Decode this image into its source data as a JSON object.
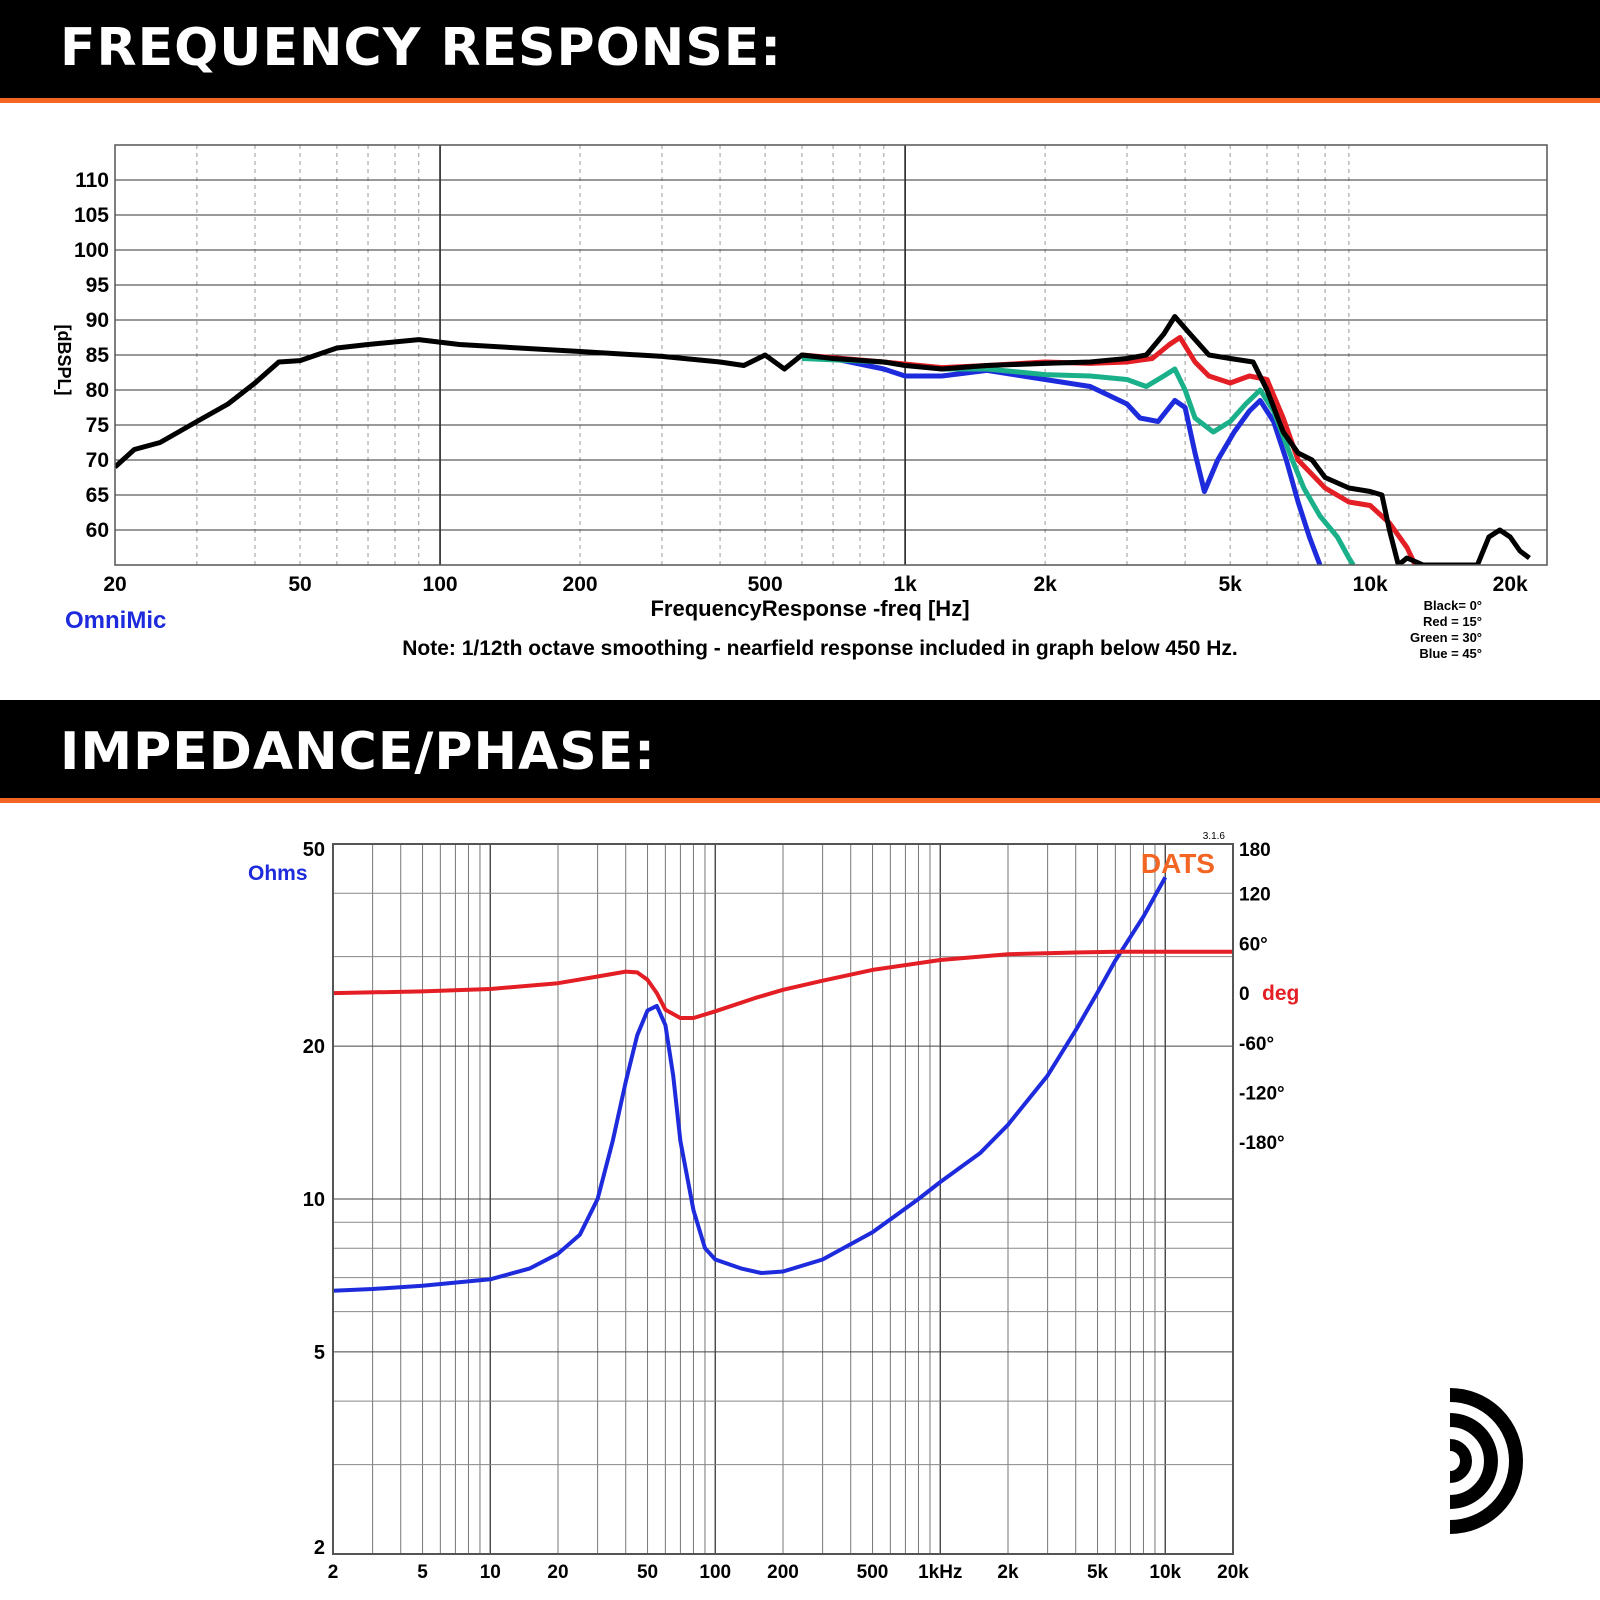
{
  "banners": {
    "frequency": "FREQUENCY RESPONSE:",
    "impedance": "IMPEDANCE/PHASE:"
  },
  "colors": {
    "accent": "#f26522",
    "black": "#000000",
    "red": "#e31e24",
    "green": "#19b08a",
    "blue": "#1d2bdc"
  },
  "chart_data": [
    {
      "type": "line",
      "title": "",
      "xlabel": "FrequencyResponse -freq [Hz]",
      "ylabel": "[dBSPL]",
      "x_scale": "log",
      "xlim": [
        20,
        24000
      ],
      "ylim": [
        55,
        115
      ],
      "grid": true,
      "x_ticks": [
        20,
        50,
        100,
        200,
        500,
        1000,
        2000,
        5000,
        10000,
        20000
      ],
      "x_tick_labels": [
        "20",
        "50",
        "100",
        "200",
        "500",
        "1k",
        "2k",
        "5k",
        "10k",
        "20k"
      ],
      "y_ticks": [
        60,
        65,
        70,
        75,
        80,
        85,
        90,
        95,
        100,
        105,
        110
      ],
      "brand_label": "OmniMic",
      "note": "Note: 1/12th octave smoothing - nearfield response included in graph below 450 Hz.",
      "legend_placement": "bottom-right",
      "legend": [
        "Black= 0°",
        "Red = 15°",
        "Green = 30°",
        "Blue = 45°"
      ],
      "series": [
        {
          "name": "Black= 0°",
          "color": "#000000",
          "points": [
            [
              20,
              69
            ],
            [
              22,
              71.5
            ],
            [
              25,
              72.5
            ],
            [
              30,
              75.5
            ],
            [
              35,
              78
            ],
            [
              40,
              81
            ],
            [
              45,
              84
            ],
            [
              50,
              84.2
            ],
            [
              60,
              86
            ],
            [
              70,
              86.5
            ],
            [
              90,
              87.2
            ],
            [
              110,
              86.5
            ],
            [
              200,
              85.5
            ],
            [
              300,
              84.8
            ],
            [
              400,
              84
            ],
            [
              450,
              83.5
            ],
            [
              500,
              85
            ],
            [
              550,
              83
            ],
            [
              600,
              85
            ],
            [
              700,
              84.5
            ],
            [
              900,
              84
            ],
            [
              1000,
              83.5
            ],
            [
              1200,
              83
            ],
            [
              1500,
              83.5
            ],
            [
              2000,
              83.8
            ],
            [
              2500,
              84
            ],
            [
              3000,
              84.5
            ],
            [
              3300,
              85
            ],
            [
              3600,
              88
            ],
            [
              3800,
              90.5
            ],
            [
              4100,
              88
            ],
            [
              4500,
              85
            ],
            [
              5000,
              84.5
            ],
            [
              5600,
              84
            ],
            [
              6000,
              80
            ],
            [
              6500,
              74
            ],
            [
              7000,
              71
            ],
            [
              7500,
              70
            ],
            [
              8000,
              67.5
            ],
            [
              9000,
              66
            ],
            [
              10000,
              65.5
            ],
            [
              10600,
              65
            ],
            [
              11000,
              60
            ],
            [
              11500,
              55
            ],
            [
              12000,
              56
            ],
            [
              13000,
              55
            ],
            [
              17000,
              55
            ],
            [
              18000,
              59
            ],
            [
              19000,
              60
            ],
            [
              20000,
              59
            ],
            [
              21000,
              57
            ],
            [
              22000,
              56
            ]
          ]
        },
        {
          "name": "Red = 15°",
          "color": "#e31e24",
          "points": [
            [
              600,
              85
            ],
            [
              900,
              84
            ],
            [
              1200,
              83.2
            ],
            [
              1500,
              83.5
            ],
            [
              2000,
              84
            ],
            [
              2500,
              83.8
            ],
            [
              3000,
              84
            ],
            [
              3400,
              84.5
            ],
            [
              3700,
              86.5
            ],
            [
              3900,
              87.5
            ],
            [
              4200,
              84
            ],
            [
              4500,
              82
            ],
            [
              5000,
              81
            ],
            [
              5500,
              82
            ],
            [
              6000,
              81.5
            ],
            [
              6500,
              76
            ],
            [
              7000,
              70
            ],
            [
              8000,
              66
            ],
            [
              9000,
              64
            ],
            [
              10000,
              63.5
            ],
            [
              11000,
              61
            ],
            [
              12000,
              57.5
            ],
            [
              12500,
              55
            ]
          ]
        },
        {
          "name": "Green = 30°",
          "color": "#19b08a",
          "points": [
            [
              600,
              84.5
            ],
            [
              900,
              84
            ],
            [
              1200,
              83
            ],
            [
              1500,
              83
            ],
            [
              2000,
              82.2
            ],
            [
              2500,
              82
            ],
            [
              3000,
              81.5
            ],
            [
              3300,
              80.5
            ],
            [
              3600,
              82
            ],
            [
              3800,
              83
            ],
            [
              4000,
              80
            ],
            [
              4200,
              76
            ],
            [
              4600,
              74
            ],
            [
              5000,
              75.5
            ],
            [
              5400,
              78
            ],
            [
              5800,
              80
            ],
            [
              6200,
              77
            ],
            [
              6800,
              70
            ],
            [
              7200,
              66
            ],
            [
              7800,
              62
            ],
            [
              8500,
              59
            ],
            [
              9000,
              56
            ],
            [
              9200,
              55
            ]
          ]
        },
        {
          "name": "Blue = 45°",
          "color": "#1d2bdc",
          "points": [
            [
              700,
              84.5
            ],
            [
              900,
              83
            ],
            [
              1000,
              82
            ],
            [
              1200,
              82
            ],
            [
              1500,
              82.8
            ],
            [
              2000,
              81.5
            ],
            [
              2500,
              80.5
            ],
            [
              3000,
              78
            ],
            [
              3200,
              76
            ],
            [
              3500,
              75.5
            ],
            [
              3800,
              78.5
            ],
            [
              4000,
              77.5
            ],
            [
              4200,
              71
            ],
            [
              4400,
              65.5
            ],
            [
              4700,
              70
            ],
            [
              5100,
              74
            ],
            [
              5500,
              77
            ],
            [
              5800,
              78.5
            ],
            [
              6200,
              75.5
            ],
            [
              6600,
              70
            ],
            [
              7000,
              64
            ],
            [
              7400,
              59
            ],
            [
              7800,
              55
            ]
          ]
        }
      ]
    },
    {
      "type": "line",
      "title": "",
      "x_scale": "log",
      "y_scale": "log",
      "xlim": [
        2,
        20000
      ],
      "ylim": [
        2,
        50
      ],
      "y2lim": [
        -180,
        180
      ],
      "grid": true,
      "x_tick_labels": [
        "2",
        "5",
        "10",
        "20",
        "50",
        "100",
        "200",
        "500",
        "1kHz",
        "2k",
        "5k",
        "10k",
        "20k"
      ],
      "x_ticks": [
        2,
        5,
        10,
        20,
        50,
        100,
        200,
        500,
        1000,
        2000,
        5000,
        10000,
        20000
      ],
      "y_ticks": [
        2,
        5,
        10,
        20,
        50
      ],
      "y_tick_labels": [
        "2",
        "5",
        "10",
        "20",
        "50"
      ],
      "ylabel": "Ohms",
      "y2label": "deg",
      "y2_ticks": [
        180,
        120,
        60,
        0,
        -60,
        -120,
        -180
      ],
      "y2_tick_labels": [
        "180",
        "120",
        "60°",
        "0",
        "-60°",
        "-120°",
        "-180°"
      ],
      "brand_label": "DATS",
      "version": "3.1.6",
      "series": [
        {
          "name": "",
          "axis": "left",
          "color": "#1d2bdc",
          "points": [
            [
              2,
              6.6
            ],
            [
              3,
              6.65
            ],
            [
              5,
              6.75
            ],
            [
              10,
              6.95
            ],
            [
              15,
              7.3
            ],
            [
              20,
              7.8
            ],
            [
              25,
              8.5
            ],
            [
              30,
              10
            ],
            [
              35,
              13
            ],
            [
              40,
              17
            ],
            [
              45,
              21
            ],
            [
              50,
              23.5
            ],
            [
              55,
              24
            ],
            [
              60,
              22
            ],
            [
              65,
              17.5
            ],
            [
              70,
              13
            ],
            [
              80,
              9.5
            ],
            [
              90,
              8
            ],
            [
              100,
              7.6
            ],
            [
              130,
              7.3
            ],
            [
              160,
              7.15
            ],
            [
              200,
              7.2
            ],
            [
              300,
              7.6
            ],
            [
              500,
              8.6
            ],
            [
              800,
              10
            ],
            [
              1000,
              10.8
            ],
            [
              1500,
              12.3
            ],
            [
              2000,
              14
            ],
            [
              3000,
              17.5
            ],
            [
              4000,
              21.5
            ],
            [
              5000,
              25.5
            ],
            [
              6000,
              29.5
            ],
            [
              8000,
              36
            ],
            [
              10000,
              43
            ]
          ]
        },
        {
          "name": "",
          "axis": "right",
          "color": "#e31e24",
          "points": [
            [
              2,
              0
            ],
            [
              5,
              2
            ],
            [
              10,
              5
            ],
            [
              20,
              12
            ],
            [
              30,
              20
            ],
            [
              40,
              26
            ],
            [
              45,
              25
            ],
            [
              50,
              16
            ],
            [
              55,
              0
            ],
            [
              60,
              -20
            ],
            [
              70,
              -30
            ],
            [
              80,
              -30
            ],
            [
              100,
              -22
            ],
            [
              150,
              -6
            ],
            [
              200,
              4
            ],
            [
              300,
              15
            ],
            [
              500,
              28
            ],
            [
              1000,
              40
            ],
            [
              2000,
              47
            ],
            [
              4000,
              49
            ],
            [
              6000,
              50
            ],
            [
              10000,
              50
            ],
            [
              20000,
              50
            ]
          ]
        }
      ]
    }
  ]
}
